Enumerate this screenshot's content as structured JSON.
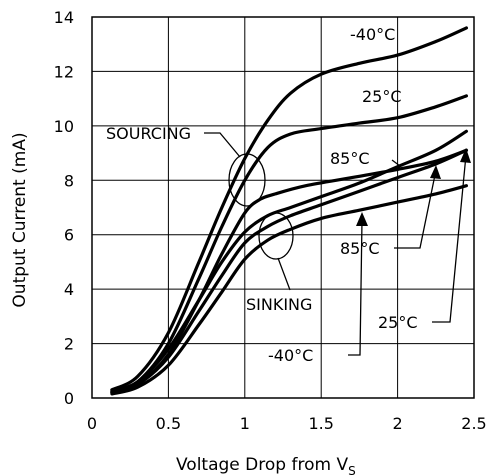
{
  "chart_data": {
    "type": "line",
    "title": "",
    "xlabel": "Voltage Drop from V",
    "xlabel_subscript": "S",
    "ylabel": "Output Current (mA)",
    "xlim": [
      0,
      2.5
    ],
    "ylim": [
      0,
      14
    ],
    "x_ticks": [
      "0",
      "0.5",
      "1",
      "1.5",
      "2",
      "2.5"
    ],
    "y_ticks": [
      "0",
      "2",
      "4",
      "6",
      "8",
      "10",
      "12",
      "14"
    ],
    "grid": true,
    "group_labels": {
      "sourcing": "SOURCING",
      "sinking": "SINKING"
    },
    "series": [
      {
        "name": "-40°C",
        "group": "sourcing",
        "x": [
          0.13,
          0.3,
          0.5,
          0.7,
          0.85,
          1.0,
          1.15,
          1.3,
          1.5,
          1.75,
          2.0,
          2.25,
          2.45
        ],
        "y": [
          0.3,
          0.8,
          2.4,
          5.0,
          7.0,
          8.8,
          10.2,
          11.2,
          11.9,
          12.3,
          12.6,
          13.1,
          13.6
        ]
      },
      {
        "name": "25°C",
        "group": "sourcing",
        "x": [
          0.13,
          0.3,
          0.5,
          0.7,
          0.85,
          1.0,
          1.15,
          1.3,
          1.5,
          1.75,
          2.0,
          2.25,
          2.45
        ],
        "y": [
          0.25,
          0.6,
          2.0,
          4.4,
          6.3,
          8.0,
          9.2,
          9.7,
          9.9,
          10.1,
          10.3,
          10.7,
          11.1
        ]
      },
      {
        "name": "85°C",
        "group": "sourcing",
        "x": [
          0.13,
          0.3,
          0.5,
          0.7,
          0.85,
          1.0,
          1.1,
          1.2,
          1.4,
          1.7,
          2.0,
          2.25,
          2.45
        ],
        "y": [
          0.2,
          0.5,
          1.6,
          3.6,
          5.3,
          6.8,
          7.3,
          7.5,
          7.8,
          8.1,
          8.4,
          8.7,
          9.1
        ]
      },
      {
        "name": "-40°C",
        "group": "sinking",
        "x": [
          0.13,
          0.3,
          0.5,
          0.7,
          0.85,
          1.0,
          1.15,
          1.3,
          1.5,
          1.75,
          2.0,
          2.25,
          2.45
        ],
        "y": [
          0.25,
          0.6,
          1.8,
          3.6,
          5.0,
          6.1,
          6.7,
          7.0,
          7.4,
          7.9,
          8.5,
          9.1,
          9.8
        ]
      },
      {
        "name": "25°C",
        "group": "sinking",
        "x": [
          0.13,
          0.3,
          0.5,
          0.7,
          0.85,
          1.0,
          1.15,
          1.3,
          1.5,
          1.75,
          2.0,
          2.25,
          2.45
        ],
        "y": [
          0.2,
          0.5,
          1.5,
          3.2,
          4.5,
          5.7,
          6.3,
          6.7,
          7.1,
          7.6,
          8.1,
          8.6,
          9.1
        ]
      },
      {
        "name": "85°C",
        "group": "sinking",
        "x": [
          0.13,
          0.3,
          0.5,
          0.7,
          0.85,
          1.0,
          1.15,
          1.3,
          1.5,
          1.75,
          2.0,
          2.25,
          2.45
        ],
        "y": [
          0.15,
          0.4,
          1.2,
          2.7,
          3.9,
          5.1,
          5.8,
          6.2,
          6.6,
          6.9,
          7.2,
          7.5,
          7.8
        ]
      }
    ],
    "annotations": [
      {
        "text": "-40°C"
      },
      {
        "text": "25°C"
      },
      {
        "text": "85°C"
      },
      {
        "text": "85°C"
      },
      {
        "text": "25°C"
      },
      {
        "text": "-40°C"
      }
    ]
  }
}
